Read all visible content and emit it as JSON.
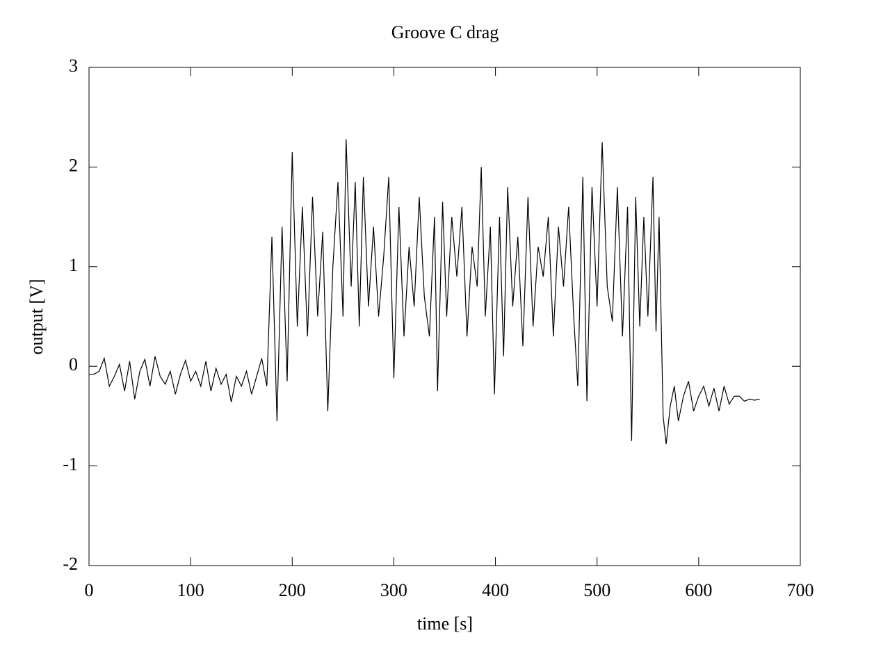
{
  "chart_data": {
    "type": "line",
    "title": "Groove C drag",
    "x_label": "time [s]",
    "y_label": "output [V]",
    "xlim": [
      0,
      700
    ],
    "ylim": [
      -2,
      3
    ],
    "xticks": [
      0,
      100,
      200,
      300,
      400,
      500,
      600,
      700
    ],
    "yticks": [
      -2,
      -1,
      0,
      1,
      2,
      3
    ],
    "color": "#000000",
    "x": [
      0,
      5,
      10,
      15,
      20,
      25,
      30,
      35,
      40,
      45,
      50,
      55,
      60,
      65,
      70,
      75,
      80,
      85,
      90,
      95,
      100,
      105,
      110,
      115,
      120,
      125,
      130,
      135,
      140,
      145,
      150,
      155,
      160,
      165,
      170,
      175,
      180,
      185,
      190,
      195,
      200,
      205,
      210,
      215,
      220,
      225,
      230,
      235,
      240,
      245,
      250,
      253,
      258,
      262,
      266,
      270,
      275,
      280,
      285,
      290,
      295,
      300,
      305,
      310,
      315,
      320,
      325,
      330,
      335,
      340,
      343,
      348,
      352,
      357,
      362,
      367,
      372,
      377,
      382,
      386,
      390,
      395,
      399,
      404,
      408,
      412,
      417,
      422,
      427,
      432,
      437,
      442,
      447,
      452,
      457,
      462,
      467,
      472,
      477,
      481,
      486,
      490,
      495,
      500,
      505,
      510,
      515,
      520,
      525,
      530,
      534,
      538,
      542,
      546,
      550,
      555,
      558,
      561,
      565,
      568,
      572,
      576,
      580,
      585,
      590,
      595,
      600,
      605,
      610,
      615,
      620,
      625,
      630,
      635,
      640,
      645,
      650,
      655,
      660
    ],
    "values": [
      -0.08,
      -0.08,
      -0.05,
      0.08,
      -0.2,
      -0.1,
      0.02,
      -0.25,
      0.05,
      -0.33,
      -0.05,
      0.07,
      -0.2,
      0.1,
      -0.1,
      -0.18,
      -0.05,
      -0.28,
      -0.08,
      0.06,
      -0.15,
      -0.05,
      -0.2,
      0.05,
      -0.25,
      -0.02,
      -0.18,
      -0.08,
      -0.36,
      -0.1,
      -0.2,
      -0.05,
      -0.28,
      -0.1,
      0.08,
      -0.2,
      1.3,
      -0.55,
      1.4,
      -0.15,
      2.15,
      0.4,
      1.6,
      0.3,
      1.7,
      0.5,
      1.35,
      -0.45,
      1.0,
      1.85,
      0.5,
      2.28,
      0.8,
      1.85,
      0.4,
      1.9,
      0.6,
      1.4,
      0.5,
      1.1,
      1.9,
      -0.12,
      1.6,
      0.3,
      1.2,
      0.6,
      1.7,
      0.7,
      0.3,
      1.5,
      -0.25,
      1.65,
      0.5,
      1.5,
      0.9,
      1.6,
      0.3,
      1.2,
      0.8,
      2.0,
      0.5,
      1.4,
      -0.28,
      1.5,
      0.1,
      1.8,
      0.6,
      1.3,
      0.2,
      1.7,
      0.4,
      1.2,
      0.9,
      1.5,
      0.3,
      1.4,
      0.8,
      1.6,
      0.5,
      -0.2,
      1.9,
      -0.35,
      1.8,
      0.6,
      2.25,
      0.8,
      0.45,
      1.8,
      0.3,
      1.6,
      -0.75,
      1.7,
      0.4,
      1.5,
      0.5,
      1.9,
      0.35,
      1.5,
      -0.5,
      -0.78,
      -0.4,
      -0.2,
      -0.55,
      -0.3,
      -0.15,
      -0.45,
      -0.3,
      -0.2,
      -0.4,
      -0.22,
      -0.45,
      -0.2,
      -0.38,
      -0.3,
      -0.3,
      -0.35,
      -0.33,
      -0.34,
      -0.33
    ]
  }
}
